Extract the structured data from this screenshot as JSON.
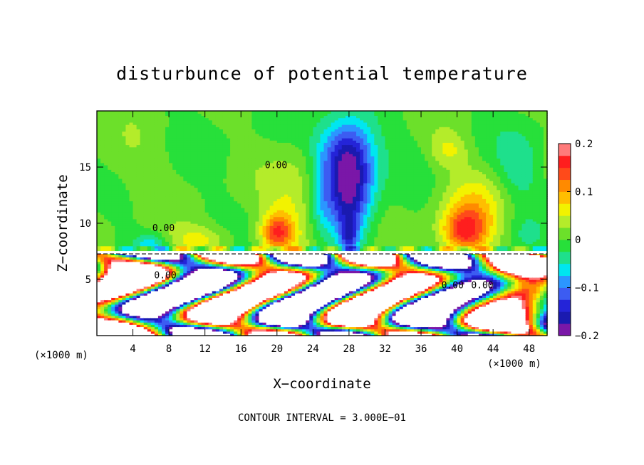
{
  "chart_data": {
    "type": "heatmap",
    "title": "disturbunce of potential temperature",
    "xlabel": "X−coordinate",
    "ylabel": "Z−coordinate",
    "x_unit_left": "(×1000 m)",
    "x_unit_right": "(×1000 m)",
    "xlim": [
      0,
      50
    ],
    "ylim": [
      0,
      20
    ],
    "x_ticks": [
      {
        "value": 4,
        "label": "4"
      },
      {
        "value": 8,
        "label": "8"
      },
      {
        "value": 12,
        "label": "12"
      },
      {
        "value": 16,
        "label": "16"
      },
      {
        "value": 20,
        "label": "20"
      },
      {
        "value": 24,
        "label": "24"
      },
      {
        "value": 28,
        "label": "28"
      },
      {
        "value": 32,
        "label": "32"
      },
      {
        "value": 36,
        "label": "36"
      },
      {
        "value": 40,
        "label": "40"
      },
      {
        "value": 44,
        "label": "44"
      },
      {
        "value": 48,
        "label": "48"
      }
    ],
    "y_ticks": [
      {
        "value": 5,
        "label": "5"
      },
      {
        "value": 10,
        "label": "10"
      },
      {
        "value": 15,
        "label": "15"
      }
    ],
    "colorbar": {
      "range": [
        -0.2,
        0.2
      ],
      "ticks": [
        {
          "value": 0.2,
          "label": "0.2"
        },
        {
          "value": 0.1,
          "label": "0.1"
        },
        {
          "value": 0,
          "label": "0"
        },
        {
          "value": -0.1,
          "label": "−0.1"
        },
        {
          "value": -0.2,
          "label": "−0.2"
        }
      ],
      "colors_low_to_high": [
        "#7a17a8",
        "#1a1ab0",
        "#2424d8",
        "#3c5cf2",
        "#2b96ff",
        "#00e6f0",
        "#1ee08c",
        "#27e03a",
        "#6ce02a",
        "#b4ec2a",
        "#f2f200",
        "#ffbe00",
        "#ff8a00",
        "#ff4a1a",
        "#ff1e1e",
        "#ff7a7a"
      ]
    },
    "contour_interval_text": "CONTOUR INTERVAL = 3.000E−01",
    "contour_labels": [
      {
        "x": 7.4,
        "y": 9.3,
        "text": "0.00"
      },
      {
        "x": 19.9,
        "y": 14.9,
        "text": "0.00"
      },
      {
        "x": 7.6,
        "y": 5.1,
        "text": "0.00"
      },
      {
        "x": 39.5,
        "y": 4.2,
        "text": "0.00"
      },
      {
        "x": 42.8,
        "y": 4.2,
        "text": "0.00"
      }
    ],
    "interface_height": 7.4,
    "features": [
      {
        "x": 28.0,
        "z": 13.5,
        "sx": 2.6,
        "sz": 4.5,
        "amp": -0.19
      },
      {
        "x": 28.0,
        "z": 9.0,
        "sx": 1.0,
        "sz": 1.5,
        "amp": -0.1
      },
      {
        "x": 27.6,
        "z": 16.8,
        "sx": 3.5,
        "sz": 2.8,
        "amp": -0.07
      },
      {
        "x": 24.8,
        "z": 12.5,
        "sx": 1.2,
        "sz": 4.0,
        "amp": -0.04
      },
      {
        "x": 40.8,
        "z": 9.2,
        "sx": 2.6,
        "sz": 2.0,
        "amp": 0.14
      },
      {
        "x": 42.0,
        "z": 11.5,
        "sx": 3.5,
        "sz": 3.0,
        "amp": 0.06
      },
      {
        "x": 39.0,
        "z": 16.5,
        "sx": 2.2,
        "sz": 1.6,
        "amp": 0.05
      },
      {
        "x": 20.0,
        "z": 9.2,
        "sx": 1.8,
        "sz": 1.7,
        "amp": 0.13
      },
      {
        "x": 22.0,
        "z": 12.0,
        "sx": 3.2,
        "sz": 4.5,
        "amp": 0.05
      },
      {
        "x": 11.5,
        "z": 8.5,
        "sx": 3.5,
        "sz": 1.4,
        "amp": 0.06
      },
      {
        "x": 47.0,
        "z": 15.0,
        "sx": 2.5,
        "sz": 3.0,
        "amp": -0.04
      },
      {
        "x": 6.0,
        "z": 8.2,
        "sx": 1.8,
        "sz": 0.9,
        "amp": -0.06
      },
      {
        "x": 3.0,
        "z": 15.5,
        "sx": 4.0,
        "sz": 3.0,
        "amp": 0.02
      },
      {
        "x": 47.5,
        "z": 9.0,
        "sx": 1.5,
        "sz": 1.5,
        "amp": -0.02
      }
    ]
  }
}
